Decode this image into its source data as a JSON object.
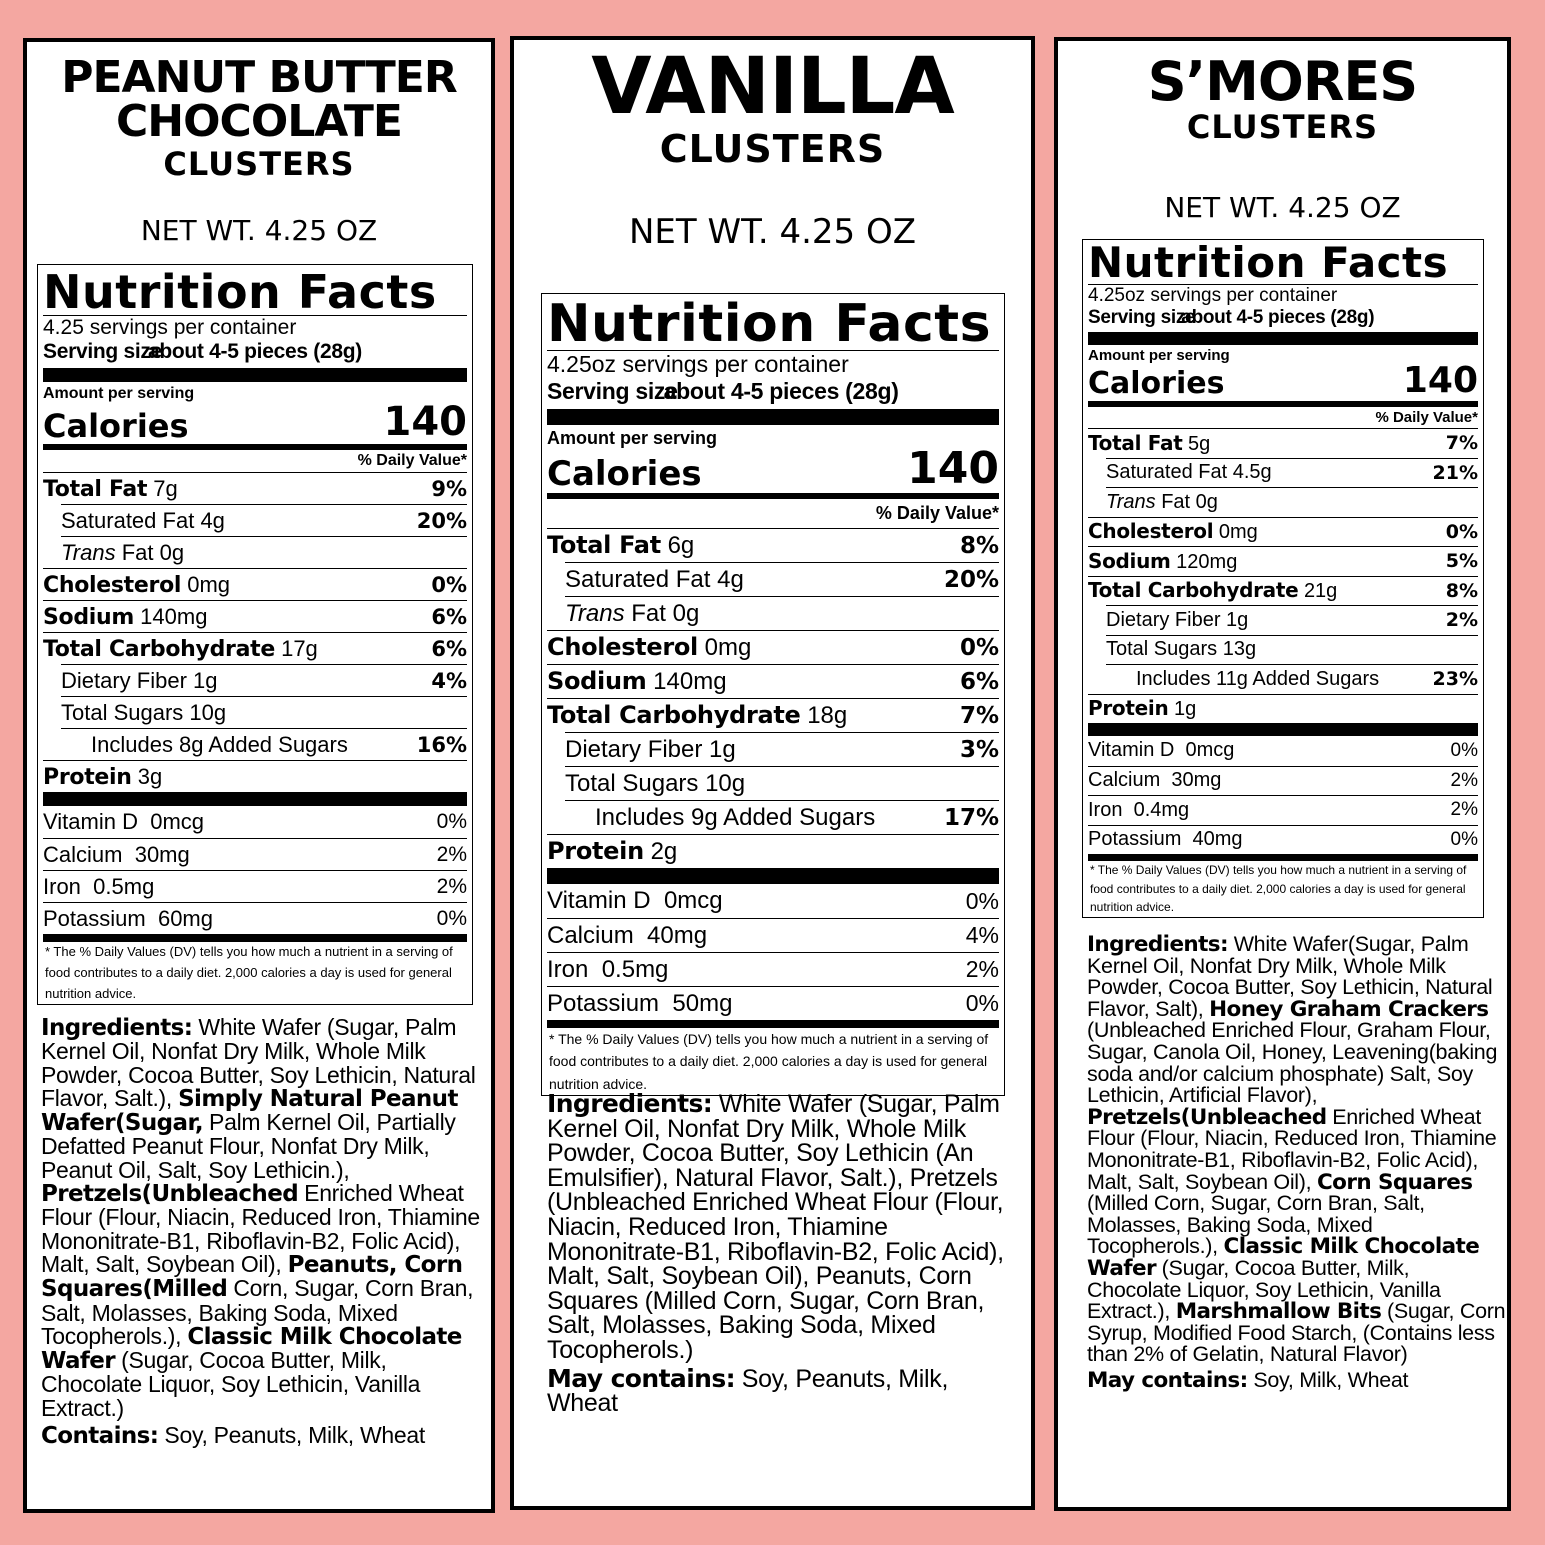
{
  "colors": {
    "background": "#f4a7a1",
    "panel": "#ffffff",
    "ink": "#000000"
  },
  "panels": [
    {
      "title_lines": [
        "PEANUT BUTTER",
        "CHOCOLATE",
        "CLUSTERS"
      ],
      "net_wt": "NET WT. 4.25 OZ",
      "facts": {
        "heading": "Nutrition Facts",
        "servings": "4.25 servings per container",
        "serving_size_label": "Serving size",
        "serving_size_value": "about 4-5 pieces (28g)",
        "amount_per_serving": "Amount per serving",
        "calories_label": "Calories",
        "calories": "140",
        "dv_header": "% Daily Value*",
        "nutrients": [
          {
            "name": "Total Fat",
            "amount": "7g",
            "dv": "9%",
            "bold": true
          },
          {
            "name": "Saturated Fat",
            "amount": "4g",
            "dv": "20%",
            "indent": 1
          },
          {
            "name": "Trans",
            "suffix": "Fat",
            "amount": "0g",
            "dv": "",
            "indent": 1,
            "italic": true
          },
          {
            "name": "Cholesterol",
            "amount": "0mg",
            "dv": "0%",
            "bold": true
          },
          {
            "name": "Sodium",
            "amount": "140mg",
            "dv": "6%",
            "bold": true
          },
          {
            "name": "Total Carbohydrate",
            "amount": "17g",
            "dv": "6%",
            "bold": true
          },
          {
            "name": "Dietary Fiber",
            "amount": "1g",
            "dv": "4%",
            "indent": 1
          },
          {
            "name": "Total Sugars",
            "amount": "10g",
            "dv": "",
            "indent": 1
          },
          {
            "name": "Includes 8g Added Sugars",
            "amount": "",
            "dv": "16%",
            "indent": 2
          },
          {
            "name": "Protein",
            "amount": "3g",
            "dv": "",
            "bold": true
          }
        ],
        "vitamins": [
          {
            "name": "Vitamin D",
            "amount": "0mcg",
            "dv": "0%"
          },
          {
            "name": "Calcium",
            "amount": "30mg",
            "dv": "2%"
          },
          {
            "name": "Iron",
            "amount": "0.5mg",
            "dv": "2%"
          },
          {
            "name": "Potassium",
            "amount": "60mg",
            "dv": "0%"
          }
        ],
        "footnote": "* The % Daily Values (DV) tells you how much a nutrient in a serving of food contributes to a daily diet. 2,000 calories a day is used for general nutrition advice."
      },
      "ingredients": [
        {
          "t": "Ingredients:",
          "b": true
        },
        {
          "t": " White Wafer (Sugar, Palm Kernel Oil, Nonfat Dry Milk, Whole Milk Powder, Cocoa Butter, Soy Lethicin, Natural Flavor, Salt.), "
        },
        {
          "t": "Simply Natural Peanut Wafer(Sugar,",
          "b": true
        },
        {
          "t": " Palm Kernel Oil, Partially Defatted Peanut Flour, Nonfat Dry Milk, Peanut Oil, Salt, Soy Lethicin.), "
        },
        {
          "t": "Pretzels(Unbleached",
          "b": true
        },
        {
          "t": " Enriched Wheat Flour (Flour, Niacin, Reduced Iron, Thiamine Mononitrate-B1, Riboflavin-B2, Folic Acid), Malt, Salt, Soybean Oil), "
        },
        {
          "t": "Peanuts, Corn Squares(Milled",
          "b": true
        },
        {
          "t": " Corn, Sugar, Corn Bran, Salt, Molasses, Baking Soda, Mixed Tocopherols.), "
        },
        {
          "t": "Classic Milk Chocolate Wafer",
          "b": true
        },
        {
          "t": " (Sugar, Cocoa Butter, Milk, Chocolate Liquor, Soy Lethicin, Vanilla Extract.)"
        }
      ],
      "contains_label": "Contains:",
      "contains": "Soy, Peanuts, Milk, Wheat"
    },
    {
      "title_lines": [
        "VANILLA",
        "CLUSTERS"
      ],
      "net_wt": "NET WT. 4.25 OZ",
      "facts": {
        "heading": "Nutrition Facts",
        "servings": "4.25oz servings per container",
        "serving_size_label": "Serving size",
        "serving_size_value": "about 4-5 pieces (28g)",
        "amount_per_serving": "Amount per serving",
        "calories_label": "Calories",
        "calories": "140",
        "dv_header": "% Daily Value*",
        "nutrients": [
          {
            "name": "Total Fat",
            "amount": "6g",
            "dv": "8%",
            "bold": true
          },
          {
            "name": "Saturated Fat",
            "amount": "4g",
            "dv": "20%",
            "indent": 1
          },
          {
            "name": "Trans",
            "suffix": "Fat",
            "amount": "0g",
            "dv": "",
            "indent": 1,
            "italic": true
          },
          {
            "name": "Cholesterol",
            "amount": "0mg",
            "dv": "0%",
            "bold": true
          },
          {
            "name": "Sodium",
            "amount": "140mg",
            "dv": "6%",
            "bold": true
          },
          {
            "name": "Total Carbohydrate",
            "amount": "18g",
            "dv": "7%",
            "bold": true
          },
          {
            "name": "Dietary Fiber",
            "amount": "1g",
            "dv": "3%",
            "indent": 1
          },
          {
            "name": "Total Sugars",
            "amount": "10g",
            "dv": "",
            "indent": 1
          },
          {
            "name": "Includes 9g Added Sugars",
            "amount": "",
            "dv": "17%",
            "indent": 2
          },
          {
            "name": "Protein",
            "amount": "2g",
            "dv": "",
            "bold": true
          }
        ],
        "vitamins": [
          {
            "name": "Vitamin D",
            "amount": "0mcg",
            "dv": "0%"
          },
          {
            "name": "Calcium",
            "amount": "40mg",
            "dv": "4%"
          },
          {
            "name": "Iron",
            "amount": "0.5mg",
            "dv": "2%"
          },
          {
            "name": "Potassium",
            "amount": "50mg",
            "dv": "0%"
          }
        ],
        "footnote": "* The % Daily Values (DV) tells you how much a nutrient in a serving of food contributes to a daily diet. 2,000 calories a day is used for general nutrition advice."
      },
      "ingredients": [
        {
          "t": "Ingredients:",
          "b": true
        },
        {
          "t": " White Wafer (Sugar, Palm Kernel Oil, Nonfat Dry Milk, Whole Milk Powder, Cocoa Butter, Soy Lethicin (An Emulsifier), Natural Flavor, Salt.), Pretzels (Unbleached Enriched Wheat Flour (Flour, Niacin, Reduced Iron, Thiamine Mononitrate-B1, Riboflavin-B2, Folic Acid), Malt, Salt, Soybean Oil), Peanuts, Corn Squares (Milled Corn, Sugar, Corn Bran, Salt, Molasses, Baking Soda, Mixed Tocopherols.)"
        }
      ],
      "contains_label": "May contains:",
      "contains": "Soy, Peanuts, Milk, Wheat"
    },
    {
      "title_lines": [
        "S’MORES",
        "CLUSTERS"
      ],
      "net_wt": "NET WT. 4.25 OZ",
      "facts": {
        "heading": "Nutrition Facts",
        "servings": "4.25oz servings per container",
        "serving_size_label": "Serving size",
        "serving_size_value": "about 4-5 pieces (28g)",
        "amount_per_serving": "Amount per serving",
        "calories_label": "Calories",
        "calories": "140",
        "dv_header": "% Daily Value*",
        "nutrients": [
          {
            "name": "Total Fat",
            "amount": "5g",
            "dv": "7%",
            "bold": true
          },
          {
            "name": "Saturated Fat",
            "amount": "4.5g",
            "dv": "21%",
            "indent": 1
          },
          {
            "name": "Trans",
            "suffix": "Fat",
            "amount": "0g",
            "dv": "",
            "indent": 1,
            "italic": true
          },
          {
            "name": "Cholesterol",
            "amount": "0mg",
            "dv": "0%",
            "bold": true
          },
          {
            "name": "Sodium",
            "amount": "120mg",
            "dv": "5%",
            "bold": true
          },
          {
            "name": "Total Carbohydrate",
            "amount": "21g",
            "dv": "8%",
            "bold": true
          },
          {
            "name": "Dietary Fiber",
            "amount": "1g",
            "dv": "2%",
            "indent": 1
          },
          {
            "name": "Total Sugars",
            "amount": "13g",
            "dv": "",
            "indent": 1
          },
          {
            "name": "Includes 11g Added Sugars",
            "amount": "",
            "dv": "23%",
            "indent": 2
          },
          {
            "name": "Protein",
            "amount": "1g",
            "dv": "",
            "bold": true
          }
        ],
        "vitamins": [
          {
            "name": "Vitamin D",
            "amount": "0mcg",
            "dv": "0%"
          },
          {
            "name": "Calcium",
            "amount": "30mg",
            "dv": "2%"
          },
          {
            "name": "Iron",
            "amount": "0.4mg",
            "dv": "2%"
          },
          {
            "name": "Potassium",
            "amount": "40mg",
            "dv": "0%"
          }
        ],
        "footnote": "* The % Daily Values (DV) tells you how much a nutrient in a serving of food contributes to a daily diet. 2,000 calories a day is used for general nutrition advice."
      },
      "ingredients": [
        {
          "t": "Ingredients:",
          "b": true
        },
        {
          "t": " White Wafer(Sugar, Palm Kernel Oil, Nonfat Dry Milk, Whole Milk Powder, Cocoa Butter, Soy Lethicin, Natural Flavor, Salt), "
        },
        {
          "t": "Honey Graham Crackers",
          "b": true
        },
        {
          "t": " (Unbleached Enriched Flour, Graham Flour, Sugar, Canola Oil, Honey, Leavening(baking soda and/or calcium phosphate) Salt, Soy Lethicin, Artificial Flavor), "
        },
        {
          "t": "Pretzels(Unbleached",
          "b": true
        },
        {
          "t": " Enriched Wheat Flour (Flour, Niacin, Reduced Iron, Thiamine Mononitrate-B1, Riboflavin-B2, Folic Acid), Malt, Salt, Soybean Oil), "
        },
        {
          "t": "Corn Squares",
          "b": true
        },
        {
          "t": " (Milled Corn, Sugar, Corn Bran, Salt, Molasses, Baking Soda, Mixed Tocopherols.), "
        },
        {
          "t": "Classic Milk Chocolate Wafer",
          "b": true
        },
        {
          "t": " (Sugar, Cocoa Butter, Milk, Chocolate Liquor, Soy Lethicin, Vanilla Extract.), "
        },
        {
          "t": "Marshmallow Bits",
          "b": true
        },
        {
          "t": " (Sugar, Corn Syrup, Modified Food Starch, (Contains less than 2% of Gelatin, Natural Flavor)"
        }
      ],
      "contains_label": "May contains:",
      "contains": "Soy, Milk, Wheat"
    }
  ]
}
